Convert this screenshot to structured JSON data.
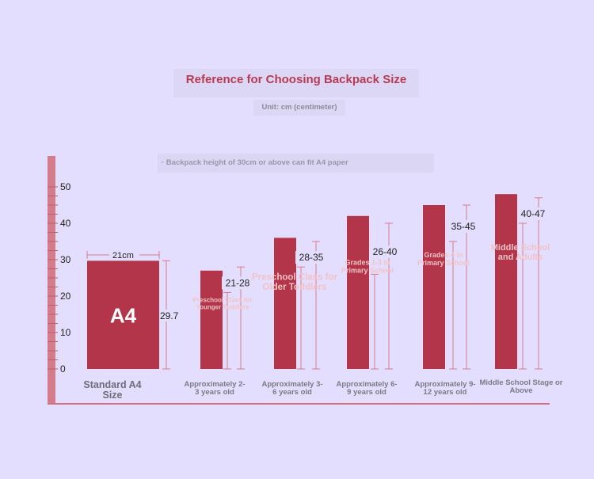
{
  "title": "Reference for Choosing Backpack Size",
  "unit": "Unit: cm (centimeter)",
  "note": "· Backpack height of 30cm or above can fit A4 paper",
  "colors": {
    "bar": "#b3354a",
    "bar_light": "#c8485c",
    "guide": "#d9798a",
    "axis": "#d2707f",
    "inner_text": "#f3c2c7",
    "tick_text": "#222222"
  },
  "chart_data": {
    "type": "bar",
    "ylim": [
      0,
      50
    ],
    "yticks": [
      0,
      10,
      20,
      30,
      40,
      50
    ],
    "a4": {
      "label": "A4",
      "width_label": "21cm",
      "height_value": 29.7,
      "height_label": "29.7"
    },
    "categories": [
      "Standard A4 Size",
      "Approximately 2-3 years old",
      "Approximately 3-6 years old",
      "Approximately 6-9 years old",
      "Approximately 9-12 years old",
      "Middle School Stage or Above"
    ],
    "bars": [
      {
        "value": 29.7
      },
      {
        "value": 27,
        "range": [
          21,
          28
        ],
        "range_label": "21-28",
        "inner": "Preschool Class for Younger Toddlers"
      },
      {
        "value": 36,
        "range": [
          28,
          35
        ],
        "range_label": "28-35",
        "inner": "Preschool Class for Older Toddlers"
      },
      {
        "value": 42,
        "range": [
          26,
          40
        ],
        "range_label": "26-40",
        "inner": "Grades 1-3 in Primary School"
      },
      {
        "value": 45,
        "range": [
          35,
          45
        ],
        "range_label": "35-45",
        "inner": "Grades 4 in Primary School"
      },
      {
        "value": 48,
        "range": [
          40,
          47
        ],
        "range_label": "40-47",
        "inner": "Middle School and Adults"
      }
    ]
  }
}
